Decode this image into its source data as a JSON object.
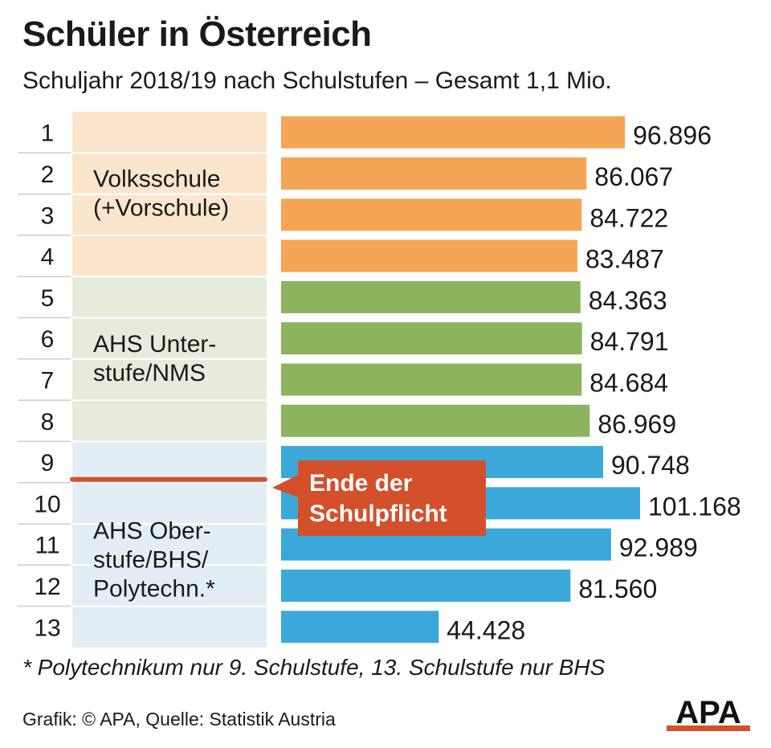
{
  "title": "Schüler in Österreich",
  "subtitle": "Schuljahr 2018/19 nach Schulstufen – Gesamt 1,1 Mio.",
  "footnote": "* Polytechnikum nur 9. Schulstufe, 13. Schulstufe nur BHS",
  "source": "Grafik: © APA, Quelle: Statistik Austria",
  "logo_text": "APA",
  "colors": {
    "volksschule": "#f4a556",
    "unterstufe": "#8cb35e",
    "oberstufe": "#3aa9d9",
    "volksschule_bg": "#fbe5cc",
    "unterstufe_bg": "#e6ebdb",
    "oberstufe_bg": "#e3edf6",
    "callout": "#d4502b",
    "grid": "#cccccc"
  },
  "chart_data": {
    "type": "bar",
    "orientation": "horizontal",
    "title": "Schüler in Österreich",
    "xlim": [
      0,
      101168
    ],
    "categories": [
      "1",
      "2",
      "3",
      "4",
      "5",
      "6",
      "7",
      "8",
      "9",
      "10",
      "11",
      "12",
      "13"
    ],
    "values": [
      96896,
      86067,
      84722,
      83487,
      84363,
      84791,
      84684,
      86969,
      90748,
      101168,
      92989,
      81560,
      44428
    ],
    "value_labels": [
      "96.896",
      "86.067",
      "84.722",
      "83.487",
      "84.363",
      "84.791",
      "84.684",
      "86.969",
      "90.748",
      "101.168",
      "92.989",
      "81.560",
      "44.428"
    ],
    "groups": [
      {
        "label_lines": [
          "Volksschule",
          "(+Vorschule)"
        ],
        "color_key": "volksschule",
        "bg_key": "volksschule_bg",
        "from": 0,
        "to": 3
      },
      {
        "label_lines": [
          "AHS Unter-",
          "stufe/NMS"
        ],
        "color_key": "unterstufe",
        "bg_key": "unterstufe_bg",
        "from": 4,
        "to": 7
      },
      {
        "label_lines": [
          "AHS Ober-",
          "stufe/BHS/",
          "Polytechn.*"
        ],
        "color_key": "oberstufe",
        "bg_key": "oberstufe_bg",
        "from": 8,
        "to": 12
      }
    ],
    "annotation": {
      "lines": [
        "Ende der",
        "Schulpflicht"
      ],
      "after_category": "9"
    }
  }
}
